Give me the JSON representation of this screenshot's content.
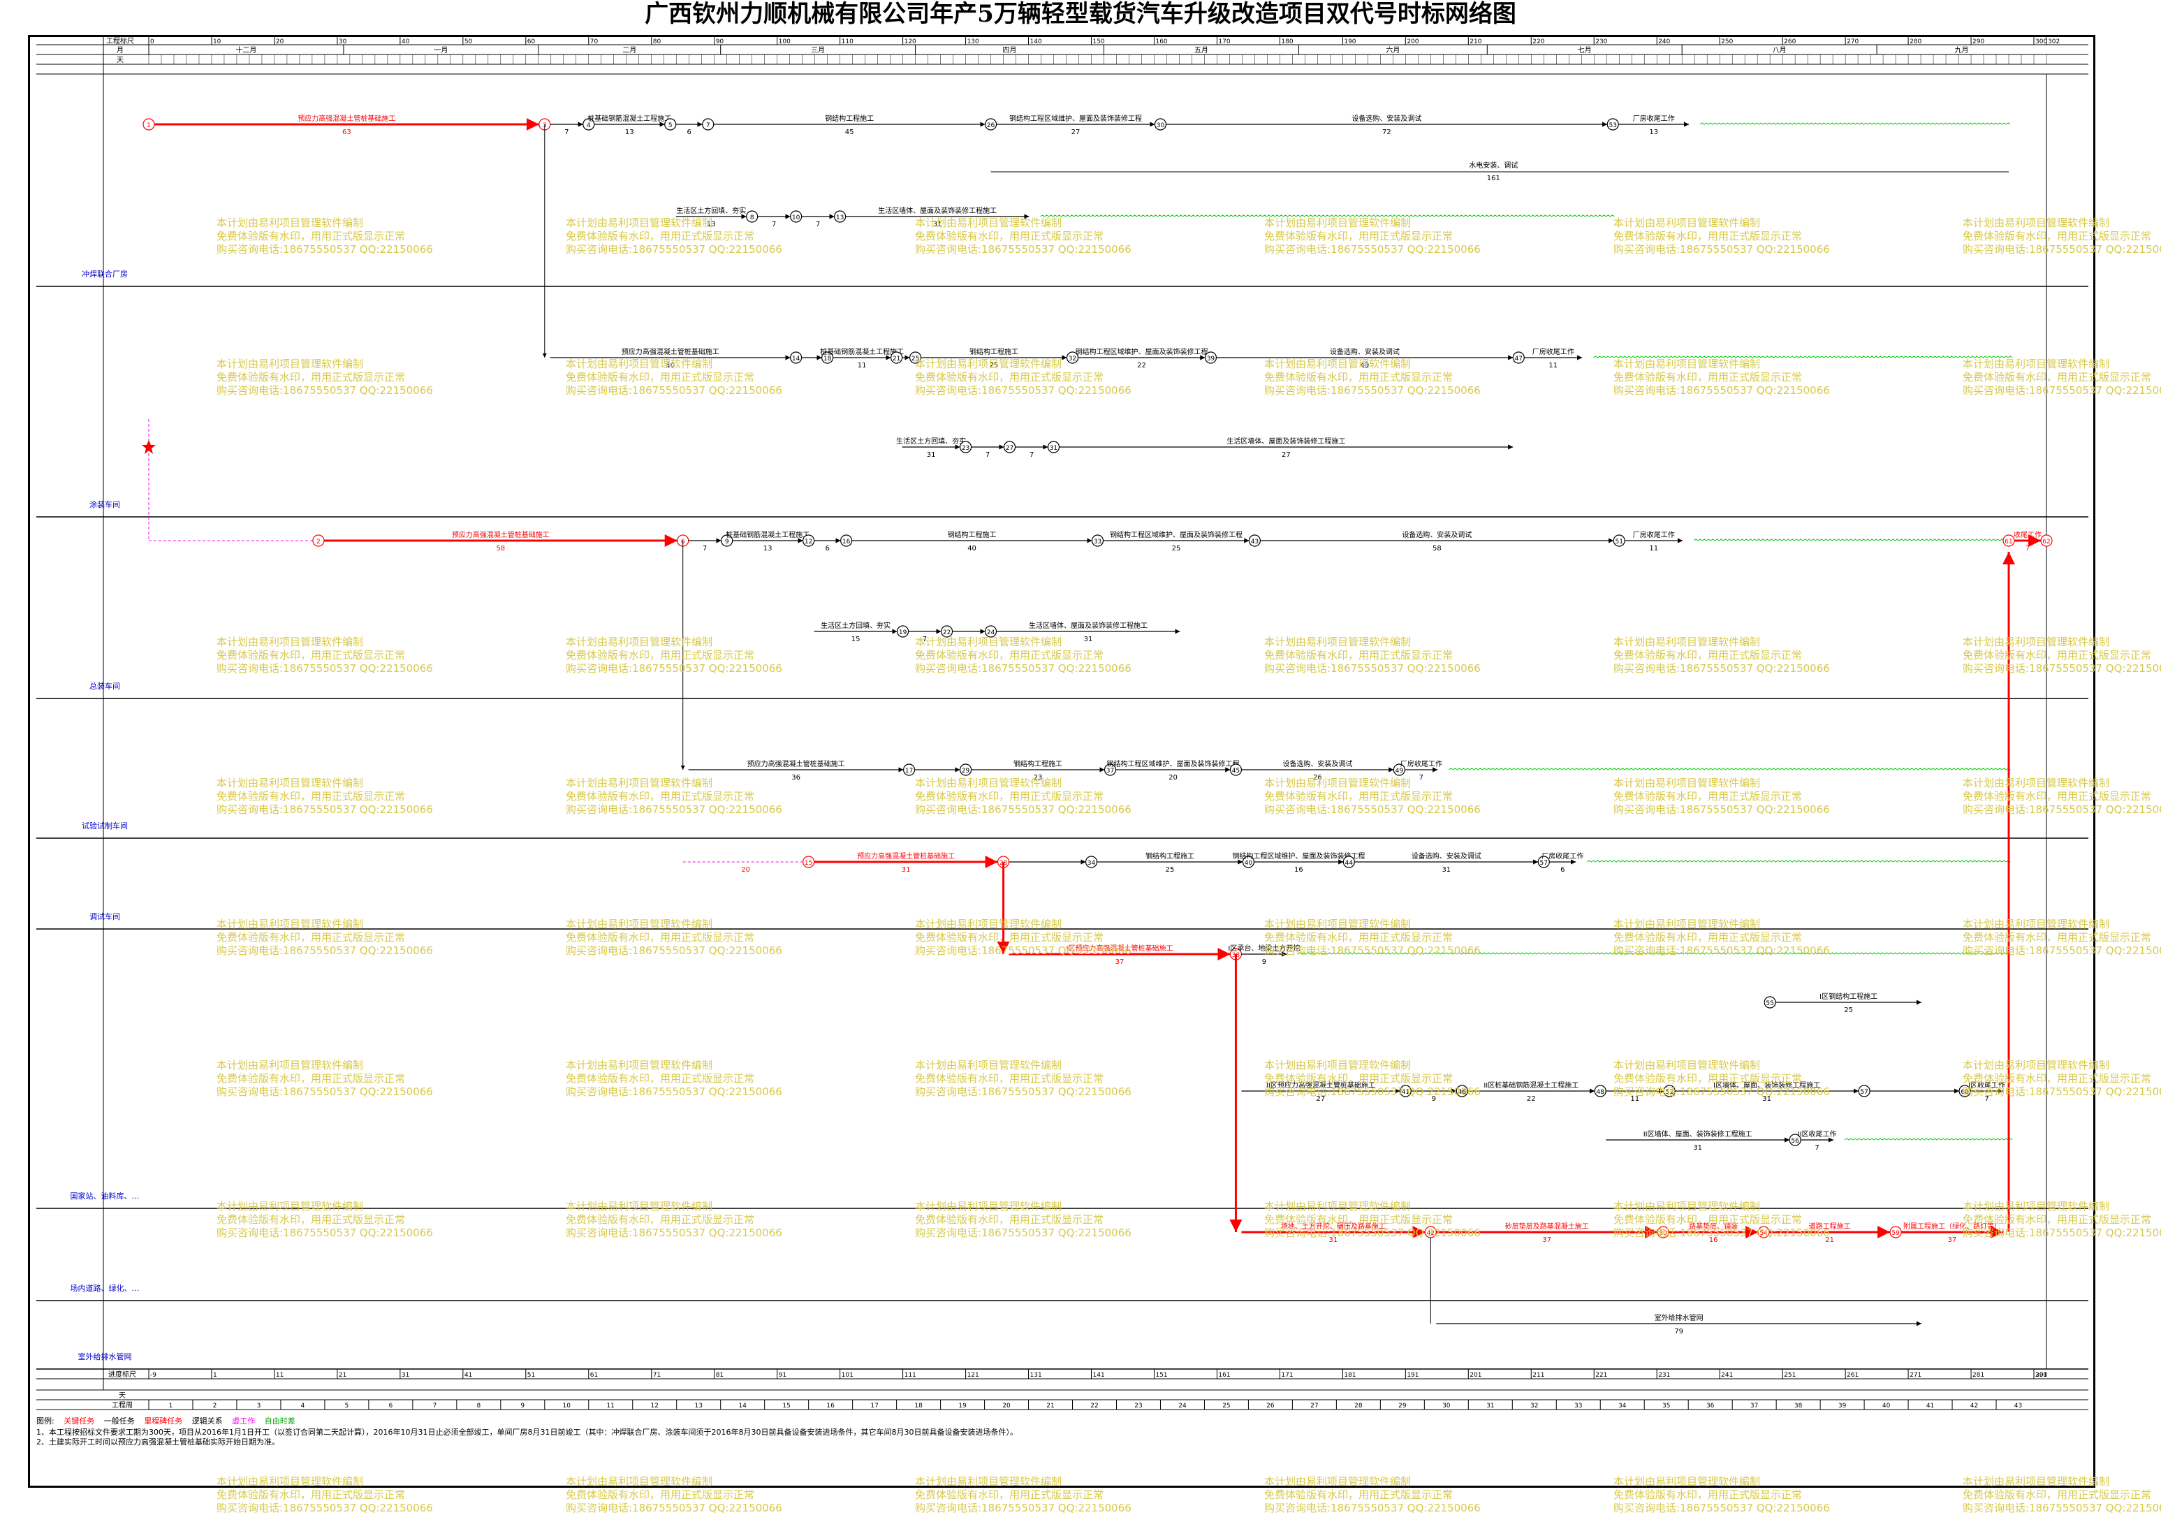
{
  "title": "广西钦州力顺机械有限公司年产5万辆轻型载货汽车升级改造项目双代号时标网络图",
  "colors": {
    "critical": "#ff0000",
    "normal": "#000000",
    "float": "#00cc00",
    "virtual": "#ff00ff",
    "grid": "#000000",
    "lane_label": "#0000cc",
    "watermark": "#d8c94a"
  },
  "scale": {
    "label_top": "工程标尺",
    "label_day": "天",
    "label_month": "月",
    "label_bottom": "进度标尺",
    "label_weekday": "天",
    "label_week": "工程周",
    "ticks_top": [
      "0",
      "10",
      "20",
      "30",
      "40",
      "50",
      "60",
      "70",
      "80",
      "90",
      "100",
      "110",
      "120",
      "130",
      "140",
      "150",
      "160",
      "170",
      "180",
      "190",
      "200",
      "210",
      "220",
      "230",
      "240",
      "250",
      "260",
      "270",
      "280",
      "290",
      "300",
      "302"
    ],
    "ticks_bottom": [
      "-9",
      "1",
      "11",
      "21",
      "31",
      "41",
      "51",
      "61",
      "71",
      "81",
      "91",
      "101",
      "111",
      "121",
      "131",
      "141",
      "151",
      "161",
      "171",
      "181",
      "191",
      "201",
      "211",
      "221",
      "231",
      "241",
      "251",
      "261",
      "271",
      "281",
      "291",
      "300"
    ],
    "months": [
      "十二月",
      "一月",
      "二月",
      "三月",
      "四月",
      "五月",
      "六月",
      "七月",
      "八月",
      "九月"
    ],
    "weeks": [
      "1",
      "2",
      "3",
      "4",
      "5",
      "6",
      "7",
      "8",
      "9",
      "10",
      "11",
      "12",
      "13",
      "14",
      "15",
      "16",
      "17",
      "18",
      "19",
      "20",
      "21",
      "22",
      "23",
      "24",
      "25",
      "26",
      "27",
      "28",
      "29",
      "30",
      "31",
      "32",
      "33",
      "34",
      "35",
      "36",
      "37",
      "38",
      "39",
      "40",
      "41",
      "42",
      "43"
    ]
  },
  "lanes": [
    "冲焊联合厂房",
    "涂装车间",
    "总装车间",
    "试验试制车间",
    "调试车间",
    "国家站、油料库、油料库房、发生中心、遥感办I区钢结构区、IV区结构",
    "场内道路、绿化、综合停车场、工程",
    "室外给排水管网"
  ],
  "activities": {
    "a1": "预应力高强混凝土管桩基础施工",
    "a1d": "63",
    "a2": "桩基础钢筋混凝土工程施工",
    "a2d": "13",
    "a3": "钢结构工程施工",
    "a3d": "45",
    "a4": "钢结构工程区域维护、屋面及装饰装修工程",
    "a4d": "27",
    "a5": "设备选购、安装及调试",
    "a5d": "72",
    "a6": "厂房收尾工作",
    "a6d": "13",
    "a7": "水电安装、调试",
    "a7d": "161",
    "a8": "生活区土方回填、夯实",
    "a8d": "13",
    "a9": "生活区墙体、屋面及装饰装修工程施工",
    "a9d": "31",
    "b1": "预应力高强混凝土管桩基础施工",
    "b1d": "40",
    "b2": "桩基础钢筋混凝土工程施工",
    "b2d": "11",
    "b3": "钢结构工程施工",
    "b3d": "25",
    "b4": "钢结构工程区域维护、屋面及装饰装修工程",
    "b4d": "22",
    "b5": "设备选购、安装及调试",
    "b5d": "49",
    "b6": "厂房收尾工作",
    "b6d": "11",
    "b7": "生活区土方回填、夯实",
    "b7d": "31",
    "b8": "生活区墙体、屋面及装饰装修工程施工",
    "b8d": "27",
    "c1": "预应力高强混凝土管桩基础施工",
    "c1d": "58",
    "c2": "桩基础钢筋混凝土工程施工",
    "c2d": "13",
    "c3": "钢结构工程施工",
    "c3d": "40",
    "c4": "钢结构工程区域维护、屋面及装饰装修工程",
    "c4d": "25",
    "c5": "设备选购、安装及调试",
    "c5d": "58",
    "c6": "厂房收尾工作",
    "c6d": "11",
    "c7": "生活区土方回填、夯实",
    "c7d": "15",
    "c8": "生活区墙体、屋面及装饰装修工程施工",
    "c8d": "31",
    "c9": "收尾工作",
    "c9d": "7",
    "d1": "预应力高强混凝土管桩基础施工",
    "d1d": "36",
    "d2": "钢结构工程施工",
    "d2d": "23",
    "d3": "钢结构工程区域维护、屋面及装饰装修工程",
    "d3d": "20",
    "d4": "设备选购、安装及调试",
    "d4d": "26",
    "d5": "厂房收尾工作",
    "d5d": "7",
    "e1": "预应力高强混凝土管桩基础施工",
    "e1d": "31",
    "e0d": "20",
    "e2": "钢结构工程施工",
    "e2d": "25",
    "e3": "钢结构工程区域维护、屋面及装饰装修工程",
    "e3d": "16",
    "e4": "设备选购、安装及调试",
    "e4d": "31",
    "e5": "厂房收尾工作",
    "e5d": "6",
    "f1": "I区预应力高强混凝土管桩基础施工",
    "f1d": "37",
    "f2": "I区承台、地梁土方开挖",
    "f2d": "9",
    "f3": "II区预应力高强混凝土管桩基础施工",
    "f3d": "27",
    "f4": "II区桩基础钢筋混凝土工程施工",
    "f4d": "22",
    "f5": "I区钢结构工程施工",
    "f5d": "25",
    "f6": "II区墙体、屋面、装饰装修工程施工",
    "f6d": "31",
    "f7": "I区墙体、屋面、装饰装修工程施工",
    "f7d": "31",
    "f8": "II区收尾工作",
    "f8d": "7",
    "f9": "I区收尾工作",
    "f9d": "7",
    "g1": "场地、土方开挖、碾压及路基施工",
    "g1d": "31",
    "g2": "砂层垫层及路基混凝土施工",
    "g2d": "37",
    "g3": "路基垫层、铺装",
    "g3d": "16",
    "g4": "道路工程施工",
    "g4d": "21",
    "g5": "附属工程施工（绿化、路灯等）",
    "g5d": "37",
    "h1": "室外给排水管网",
    "h1d": "79"
  },
  "legend": {
    "title": "图例:",
    "critical": "关键任务",
    "normal": "一般任务",
    "milestone": "里程碑任务",
    "logic": "逻辑关系",
    "virtual": "虚工作",
    "float": "自由时差"
  },
  "notes": [
    "1、本工程按招标文件要求工期为300天，项目从2016年1月1日开工（以签订合同第二天起计算），2016年10月31日止必须全部竣工，单间厂房8月31日前竣工（其中：冲焊联合厂房、涂装车间须于2016年8月30日前具备设备安装进场条件，其它车间8月30日前具备设备安装进场条件）。",
    "2、土建实际开工时间以预应力高强混凝土管桩基础实际开始日期为准。"
  ],
  "watermark": [
    "本计划由易利项目管理软件编制",
    "免费体验版有水印，用用正式版显示正常",
    "购买咨询电话:18675550537 QQ:22150066"
  ]
}
